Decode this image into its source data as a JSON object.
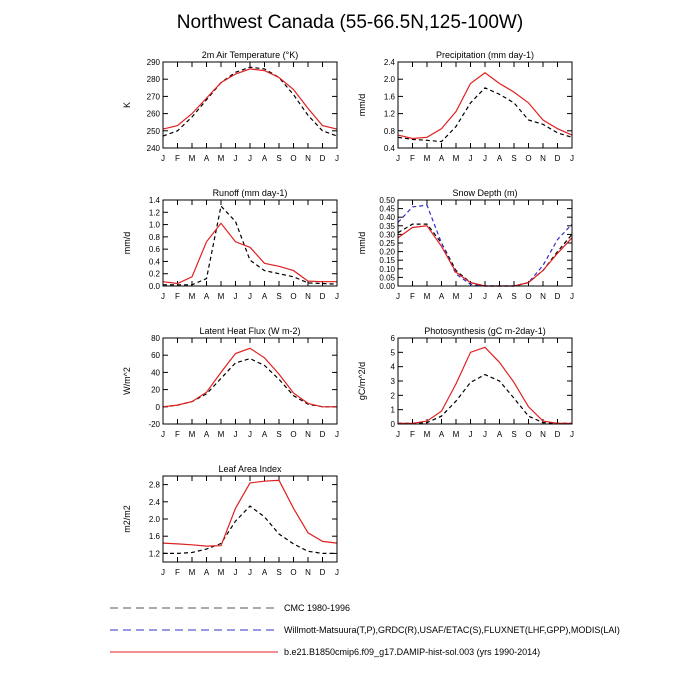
{
  "figure": {
    "title": "Northwest Canada (55-66.5N,125-100W)"
  },
  "legend": [
    {
      "label": "CMC 1980-1996",
      "color": "#555555",
      "dash": "8 5"
    },
    {
      "label": "Willmott-Matsuura(T,P),GRDC(R),USAF/ETAC(S),FLUXNET(LHF,GPP),MODIS(LAI)",
      "color": "#3030c8",
      "dash": "8 5"
    },
    {
      "label": "b.e21.B1850cmip6.f09_g17.DAMIP-hist-sol.003 (yrs 1990-2014)",
      "color": "#e02020",
      "dash": ""
    }
  ],
  "chart_data": [
    {
      "type": "line",
      "title": "2m Air Temperature (°K)",
      "ylabel": "K",
      "x": [
        "J",
        "F",
        "M",
        "A",
        "M",
        "J",
        "J",
        "A",
        "S",
        "O",
        "N",
        "D",
        "J"
      ],
      "ylim": [
        240,
        290
      ],
      "yticks": [
        240,
        250,
        260,
        270,
        280,
        290
      ],
      "series": [
        {
          "name": "CMC 1980-1996",
          "color": "#000000",
          "dash": "4 3",
          "values": [
            247,
            250,
            258,
            268,
            278,
            284,
            287,
            286,
            281,
            271,
            259,
            250,
            247
          ]
        },
        {
          "name": "b.e21.B1850cmip6.f09_g17.DAMIP-hist-sol.003 (yrs 1990-2014)",
          "color": "#e02020",
          "dash": "",
          "values": [
            251,
            253,
            260,
            269,
            278,
            283,
            286,
            285,
            281,
            274,
            263,
            253,
            251
          ]
        }
      ]
    },
    {
      "type": "line",
      "title": "Precipitation (mm day-1)",
      "ylabel": "mm/d",
      "x": [
        "J",
        "F",
        "M",
        "A",
        "M",
        "J",
        "J",
        "A",
        "S",
        "O",
        "N",
        "D",
        "J"
      ],
      "ylim": [
        0.4,
        2.4
      ],
      "yticks": [
        0.4,
        0.8,
        1.2,
        1.6,
        2.0,
        2.4
      ],
      "series": [
        {
          "name": "Willmott-Matsuura(T,P),GRDC(R),USAF/ETAC(S),FLUXNET(LHF,GPP),MODIS(LAI)",
          "color": "#000000",
          "dash": "4 3",
          "values": [
            0.65,
            0.6,
            0.58,
            0.55,
            0.9,
            1.45,
            1.8,
            1.65,
            1.45,
            1.05,
            0.95,
            0.75,
            0.65
          ]
        },
        {
          "name": "b.e21.B1850cmip6.f09_g17.DAMIP-hist-sol.003 (yrs 1990-2014)",
          "color": "#e02020",
          "dash": "",
          "values": [
            0.7,
            0.62,
            0.65,
            0.85,
            1.25,
            1.9,
            2.15,
            1.9,
            1.7,
            1.45,
            1.05,
            0.85,
            0.7
          ]
        }
      ]
    },
    {
      "type": "line",
      "title": "Runoff (mm day-1)",
      "ylabel": "mm/d",
      "x": [
        "J",
        "F",
        "M",
        "A",
        "M",
        "J",
        "J",
        "A",
        "S",
        "O",
        "N",
        "D",
        "J"
      ],
      "ylim": [
        0.0,
        1.4
      ],
      "yticks": [
        0.0,
        0.2,
        0.4,
        0.6,
        0.8,
        1.0,
        1.2,
        1.4
      ],
      "series": [
        {
          "name": "Willmott-Matsuura(T,P),GRDC(R),USAF/ETAC(S),FLUXNET(LHF,GPP),MODIS(LAI)",
          "color": "#000000",
          "dash": "4 3",
          "values": [
            0.02,
            0.02,
            0.02,
            0.12,
            1.3,
            1.05,
            0.42,
            0.25,
            0.2,
            0.15,
            0.05,
            0.04,
            0.03
          ]
        },
        {
          "name": "b.e21.B1850cmip6.f09_g17.DAMIP-hist-sol.003 (yrs 1990-2014)",
          "color": "#e02020",
          "dash": "",
          "values": [
            0.07,
            0.04,
            0.15,
            0.72,
            1.02,
            0.72,
            0.63,
            0.37,
            0.32,
            0.25,
            0.08,
            0.07,
            0.07
          ]
        }
      ]
    },
    {
      "type": "line",
      "title": "Snow Depth (m)",
      "ylabel": "mm/d",
      "x": [
        "J",
        "F",
        "M",
        "A",
        "M",
        "J",
        "J",
        "A",
        "S",
        "O",
        "N",
        "D",
        "J"
      ],
      "ylim": [
        0.0,
        0.5
      ],
      "yticks": [
        0.0,
        0.05,
        0.1,
        0.15,
        0.2,
        0.25,
        0.3,
        0.35,
        0.4,
        0.45,
        0.5
      ],
      "series": [
        {
          "name": "CMC 1980-1996",
          "color": "#000000",
          "dash": "4 3",
          "values": [
            0.31,
            0.36,
            0.36,
            0.25,
            0.09,
            0.02,
            0.0,
            0.0,
            0.0,
            0.02,
            0.09,
            0.2,
            0.3
          ]
        },
        {
          "name": "Willmott-Matsuura(T,P),GRDC(R),USAF/ETAC(S),FLUXNET(LHF,GPP),MODIS(LAI)",
          "color": "#3030c8",
          "dash": "4 3",
          "values": [
            0.37,
            0.46,
            0.47,
            0.25,
            0.07,
            0.01,
            0.0,
            0.0,
            0.0,
            0.02,
            0.12,
            0.27,
            0.36
          ]
        },
        {
          "name": "b.e21.B1850cmip6.f09_g17.DAMIP-hist-sol.003 (yrs 1990-2014)",
          "color": "#e02020",
          "dash": "",
          "values": [
            0.28,
            0.34,
            0.35,
            0.23,
            0.08,
            0.02,
            0.0,
            0.0,
            0.0,
            0.02,
            0.09,
            0.19,
            0.28
          ]
        }
      ]
    },
    {
      "type": "line",
      "title": "Latent Heat Flux (W m-2)",
      "ylabel": "W/m^2",
      "x": [
        "J",
        "F",
        "M",
        "A",
        "M",
        "J",
        "J",
        "A",
        "S",
        "O",
        "N",
        "D",
        "J"
      ],
      "ylim": [
        -20,
        80
      ],
      "yticks": [
        -20,
        0,
        20,
        40,
        60,
        80
      ],
      "series": [
        {
          "name": "Willmott-Matsuura(T,P),GRDC(R),USAF/ETAC(S),FLUXNET(LHF,GPP),MODIS(LAI)",
          "color": "#000000",
          "dash": "4 3",
          "values": [
            0,
            2,
            6,
            15,
            33,
            51,
            56,
            48,
            32,
            13,
            3,
            0,
            0
          ]
        },
        {
          "name": "b.e21.B1850cmip6.f09_g17.DAMIP-hist-sol.003 (yrs 1990-2014)",
          "color": "#e02020",
          "dash": "",
          "values": [
            0,
            2,
            6,
            17,
            40,
            62,
            68,
            57,
            38,
            16,
            4,
            0,
            0
          ]
        }
      ]
    },
    {
      "type": "line",
      "title": "Photosynthesis (gC m-2day-1)",
      "ylabel": "gC/m^2/d",
      "x": [
        "J",
        "F",
        "M",
        "A",
        "M",
        "J",
        "J",
        "A",
        "S",
        "O",
        "N",
        "D",
        "J"
      ],
      "ylim": [
        0.0,
        6.0
      ],
      "yticks": [
        0.0,
        1.0,
        2.0,
        3.0,
        4.0,
        5.0,
        6.0
      ],
      "series": [
        {
          "name": "Willmott-Matsuura(T,P),GRDC(R),USAF/ETAC(S),FLUXNET(LHF,GPP),MODIS(LAI)",
          "color": "#000000",
          "dash": "4 3",
          "values": [
            0.05,
            0.05,
            0.1,
            0.55,
            1.6,
            2.9,
            3.45,
            3.0,
            1.8,
            0.55,
            0.1,
            0.05,
            0.05
          ]
        },
        {
          "name": "b.e21.B1850cmip6.f09_g17.DAMIP-hist-sol.003 (yrs 1990-2014)",
          "color": "#e02020",
          "dash": "",
          "values": [
            0.05,
            0.05,
            0.2,
            0.9,
            2.8,
            5.0,
            5.35,
            4.3,
            2.9,
            1.2,
            0.2,
            0.05,
            0.05
          ]
        }
      ]
    },
    {
      "type": "line",
      "title": "Leaf Area Index",
      "ylabel": "m2/m2",
      "x": [
        "J",
        "F",
        "M",
        "A",
        "M",
        "J",
        "J",
        "A",
        "S",
        "O",
        "N",
        "D",
        "J"
      ],
      "ylim": [
        1.0,
        3.0
      ],
      "yticks": [
        1.2,
        1.6,
        2.0,
        2.4,
        2.8
      ],
      "series": [
        {
          "name": "Willmott-Matsuura(T,P),GRDC(R),USAF/ETAC(S),FLUXNET(LHF,GPP),MODIS(LAI)",
          "color": "#000000",
          "dash": "4 3",
          "values": [
            1.2,
            1.2,
            1.22,
            1.3,
            1.43,
            1.95,
            2.3,
            2.05,
            1.65,
            1.42,
            1.25,
            1.2,
            1.2
          ]
        },
        {
          "name": "b.e21.B1850cmip6.f09_g17.DAMIP-hist-sol.003 (yrs 1990-2014)",
          "color": "#e02020",
          "dash": "",
          "values": [
            1.44,
            1.42,
            1.4,
            1.37,
            1.38,
            2.25,
            2.84,
            2.88,
            2.9,
            2.25,
            1.68,
            1.48,
            1.44
          ]
        }
      ]
    }
  ]
}
